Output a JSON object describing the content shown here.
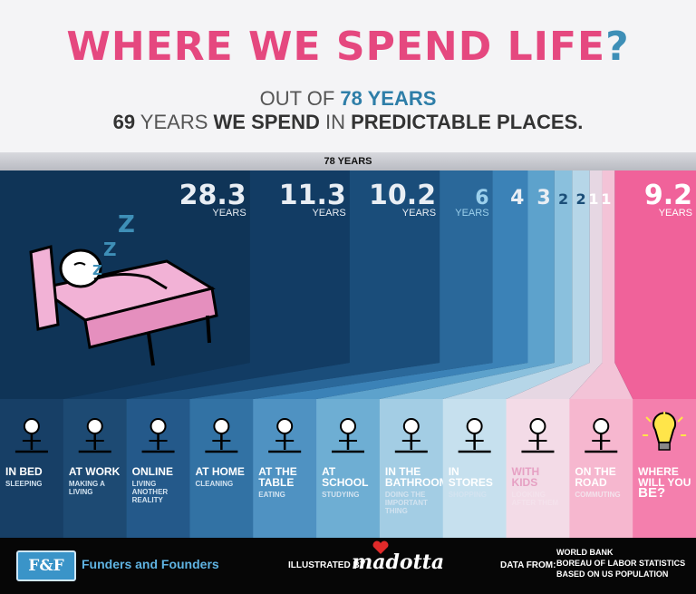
{
  "header": {
    "title_part1": "WHERE WE SPEND ",
    "title_part2": "LIFE",
    "title_part3": "?",
    "subtitle_line1_prefix": "OUT OF ",
    "subtitle_line1_value": "78 YEARS",
    "subtitle_line2_value": "69",
    "subtitle_line2_mid": " YEARS ",
    "subtitle_line2_bold": "WE SPEND",
    "subtitle_line2_in": " IN ",
    "subtitle_line2_places": "PREDICTABLE PLACES."
  },
  "total_label": "78 YEARS",
  "colors": {
    "title_pink": "#e5487f",
    "title_blue": "#3e8fb7",
    "sleep_pink": "#f2b2d6",
    "remaining_pink": "#f0629a"
  },
  "chart_data": {
    "type": "bar",
    "total": 78,
    "unit_label": "YEARS",
    "categories": [
      {
        "value": "28.3",
        "show_unit": true,
        "title": "IN BED",
        "subtitle": "SLEEPING",
        "icon": "sleeping-in-bed-icon",
        "fill": "#0f3457",
        "panel": "#173f66"
      },
      {
        "value": "11.3",
        "show_unit": true,
        "title": "AT WORK",
        "subtitle": "MAKING A LIVING",
        "icon": "working-at-desk-icon",
        "fill": "#123c64",
        "panel": "#1d4a73"
      },
      {
        "value": "10.2",
        "show_unit": true,
        "title": "ONLINE",
        "subtitle": "LIVING ANOTHER REALITY",
        "icon": "online-icon",
        "fill": "#1a4d7a",
        "panel": "#24598a"
      },
      {
        "value": "6",
        "show_unit": true,
        "title": "AT HOME",
        "subtitle": "CLEANING",
        "icon": "cleaning-icon",
        "fill": "#2a689a",
        "panel": "#3272a4"
      },
      {
        "value": "4",
        "show_unit": false,
        "title": "AT THE TABLE",
        "subtitle": "EATING",
        "icon": "eating-icon",
        "fill": "#3b82b7",
        "panel": "#4f92c2"
      },
      {
        "value": "3",
        "show_unit": false,
        "title": "AT SCHOOL",
        "subtitle": "STUDYING",
        "icon": "studying-icon",
        "fill": "#5da2cc",
        "panel": "#6eaed3"
      },
      {
        "value": "2",
        "show_unit": false,
        "title": "IN THE BATHROOM",
        "subtitle": "DOING THE IMPORTANT THING",
        "icon": "bathroom-icon",
        "fill": "#8ac0dd",
        "panel": "#a3cde4"
      },
      {
        "value": "2",
        "show_unit": false,
        "title": "IN STORES",
        "subtitle": "SHOPPING",
        "icon": "shopping-cart-icon",
        "fill": "#b6d6e8",
        "panel": "#c6e0ee"
      },
      {
        "value": "1",
        "show_unit": false,
        "title": "WITH KIDS",
        "subtitle": "LOOKING AFTER THEM",
        "icon": "kids-icon",
        "fill": "#e6d7e3",
        "panel": "#f3dbe7"
      },
      {
        "value": "1",
        "show_unit": false,
        "title": "ON THE ROAD",
        "subtitle": "COMMUTING",
        "icon": "commuting-icon",
        "fill": "#f3c3d7",
        "panel": "#f6b7cf"
      },
      {
        "value": "9.2",
        "show_unit": true,
        "title": "WHERE WILL YOU BE?",
        "subtitle": "",
        "icon": "lightbulb-icon",
        "fill": "#f0629a",
        "panel": "#f47fad"
      }
    ]
  },
  "footer": {
    "brand_logo": "F&F",
    "brand_name": "Funders and Founders",
    "illustrated_by": "ILLUSTRATED BY",
    "illustrator": "madotta",
    "data_from": "DATA FROM:",
    "sources": [
      "WORLD BANK",
      "BOREAU OF LABOR STATISTICS",
      "BASED ON US POPULATION"
    ]
  }
}
